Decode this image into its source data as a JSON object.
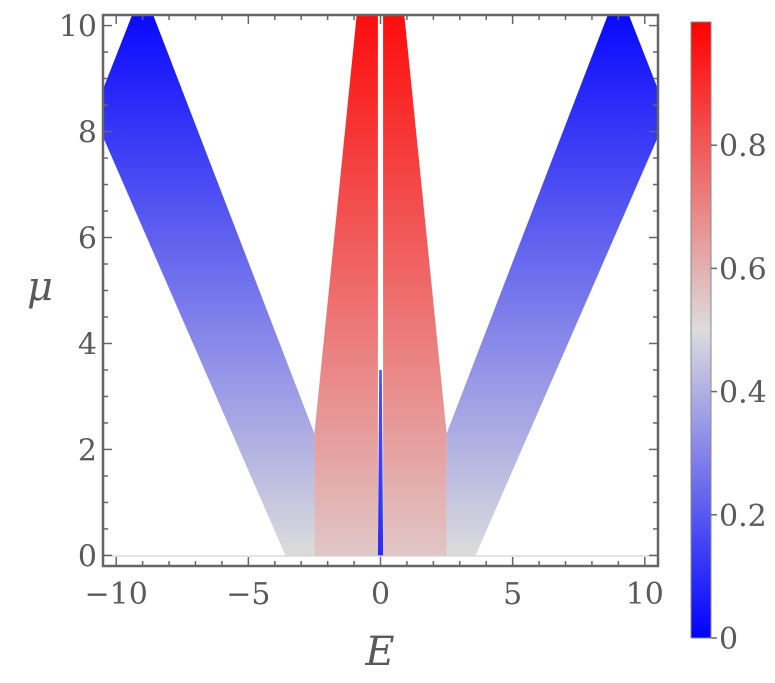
{
  "chart_data": {
    "type": "heatmap",
    "title": "",
    "xlabel": "E",
    "ylabel": "μ",
    "xlim": [
      -10.5,
      10.5
    ],
    "ylim": [
      -0.2,
      10.2
    ],
    "x_ticks": [
      {
        "value": -10,
        "label": "−10"
      },
      {
        "value": -5,
        "label": "−5"
      },
      {
        "value": 0,
        "label": "0"
      },
      {
        "value": 5,
        "label": "5"
      },
      {
        "value": 10,
        "label": "10"
      }
    ],
    "y_ticks": [
      {
        "value": 0,
        "label": "0"
      },
      {
        "value": 2,
        "label": "2"
      },
      {
        "value": 4,
        "label": "4"
      },
      {
        "value": 6,
        "label": "6"
      },
      {
        "value": 8,
        "label": "8"
      },
      {
        "value": 10,
        "label": "10"
      }
    ],
    "colorbar": {
      "range": [
        0,
        1
      ],
      "ticks": [
        {
          "value": 0,
          "label": "0"
        },
        {
          "value": 0.2,
          "label": "0.2"
        },
        {
          "value": 0.4,
          "label": "0.4"
        },
        {
          "value": 0.6,
          "label": "0.6"
        },
        {
          "value": 0.8,
          "label": "0.8"
        }
      ],
      "colors": {
        "low": "#0000ff",
        "mid": "#dcdcdc",
        "high": "#ff0000"
      }
    },
    "regions": [
      {
        "name": "left-outer-band",
        "polygon": [
          [
            -3.6,
            0
          ],
          [
            -10.5,
            7.9
          ],
          [
            -10.5,
            8.8
          ],
          [
            -9.4,
            10.2
          ],
          [
            -8.6,
            10.2
          ],
          [
            -2.5,
            2.3
          ],
          [
            -2.5,
            0
          ]
        ],
        "value_bottom": 0.5,
        "value_top": 0.02
      },
      {
        "name": "right-outer-band",
        "polygon": [
          [
            3.6,
            0
          ],
          [
            10.5,
            7.9
          ],
          [
            10.5,
            8.8
          ],
          [
            9.4,
            10.2
          ],
          [
            8.6,
            10.2
          ],
          [
            2.5,
            2.3
          ],
          [
            2.5,
            0
          ]
        ],
        "value_bottom": 0.5,
        "value_top": 0.02
      },
      {
        "name": "left-inner-band",
        "polygon": [
          [
            -2.5,
            0
          ],
          [
            -2.5,
            2.3
          ],
          [
            -0.9,
            10.2
          ],
          [
            -0.1,
            10.2
          ],
          [
            -0.1,
            0
          ]
        ],
        "value_bottom": 0.55,
        "value_top": 0.97
      },
      {
        "name": "right-inner-band",
        "polygon": [
          [
            0.1,
            0
          ],
          [
            0.1,
            10.2
          ],
          [
            0.9,
            10.2
          ],
          [
            2.5,
            2.3
          ],
          [
            2.5,
            0
          ]
        ],
        "value_bottom": 0.55,
        "value_top": 0.97
      },
      {
        "name": "center-line",
        "polygon": [
          [
            -0.1,
            0
          ],
          [
            -0.05,
            3.5
          ],
          [
            0.05,
            3.5
          ],
          [
            0.1,
            0
          ]
        ],
        "value_bottom": 0.1,
        "value_top": 0.35
      }
    ],
    "grid": false,
    "legend": "colorbar-right"
  }
}
